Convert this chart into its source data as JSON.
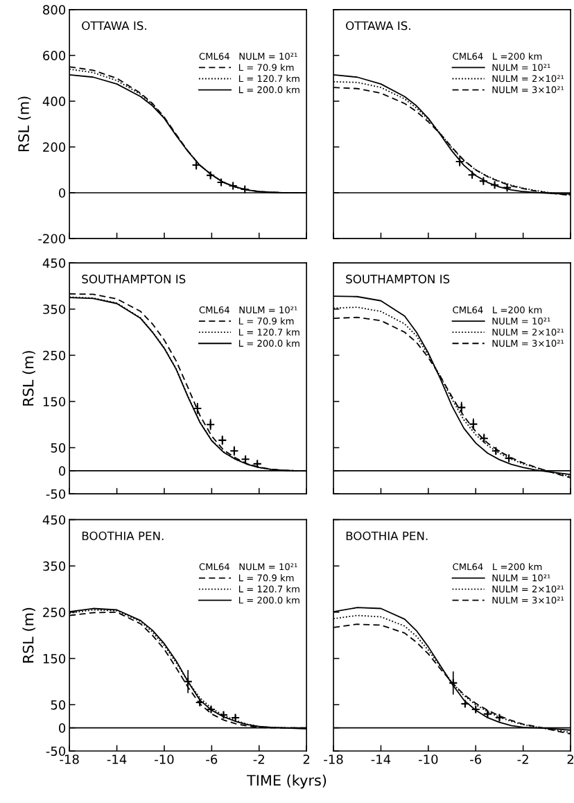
{
  "chart_data": [
    {
      "type": "line",
      "title": "OTTAWA IS.",
      "ylabel": "RSL (m)",
      "legend_title": "CML64   NULM = 10²¹",
      "legend": "upper right",
      "tick_labels": "y",
      "xlim": [
        -18,
        2
      ],
      "xticks": [
        -18,
        -14,
        -10,
        -6,
        -2,
        2
      ],
      "ylim": [
        -200,
        800
      ],
      "yticks": [
        -200,
        0,
        200,
        400,
        600,
        800
      ],
      "ref_lines": [
        {
          "axis": "y",
          "value": 0,
          "color": "#000000"
        }
      ],
      "x": [
        -18,
        -16,
        -14,
        -12,
        -11,
        -10,
        -9,
        -8,
        -7,
        -6,
        -5,
        -4,
        -3,
        -2,
        -1,
        0,
        1,
        2
      ],
      "series": [
        {
          "name": "L = 70.9 km",
          "color": "#000000",
          "line_style": "dashed",
          "values": [
            550,
            535,
            500,
            435,
            390,
            330,
            255,
            182,
            120,
            78,
            45,
            25,
            12,
            5,
            2,
            0,
            0,
            0
          ]
        },
        {
          "name": "L = 120.7 km",
          "color": "#000000",
          "line_style": "dotted",
          "values": [
            540,
            525,
            490,
            430,
            386,
            328,
            252,
            181,
            120,
            78,
            45,
            25,
            12,
            5,
            2,
            0,
            0,
            0
          ]
        },
        {
          "name": "L = 200.0 km",
          "color": "#000000",
          "line_style": "solid",
          "values": [
            515,
            505,
            475,
            420,
            380,
            325,
            250,
            180,
            120,
            78,
            45,
            25,
            12,
            5,
            2,
            0,
            0,
            0
          ]
        },
        {
          "type": "scatter",
          "marker": "cross",
          "color": "#000000",
          "x": [
            -7.3,
            -6.1,
            -5.2,
            -4.2,
            -3.2
          ],
          "values": [
            121,
            76,
            45,
            30,
            15
          ],
          "errors": [
            20,
            10,
            8,
            8,
            8
          ]
        }
      ]
    },
    {
      "type": "line",
      "title": "OTTAWA IS.",
      "legend_title": "CML64   L =200 km",
      "legend": "upper right",
      "tick_labels": false,
      "xlim": [
        -18,
        2
      ],
      "xticks": [
        -18,
        -14,
        -10,
        -6,
        -2,
        2
      ],
      "ylim": [
        -200,
        800
      ],
      "yticks": [
        -200,
        0,
        200,
        400,
        600,
        800
      ],
      "ref_lines": [
        {
          "axis": "y",
          "value": 0,
          "color": "#000000"
        }
      ],
      "x": [
        -18,
        -16,
        -14,
        -12,
        -11,
        -10,
        -9,
        -8,
        -7,
        -6,
        -5,
        -4,
        -3,
        -2,
        -1,
        0,
        1,
        2
      ],
      "series": [
        {
          "name": "NULM = 10²¹",
          "color": "#000000",
          "line_style": "solid",
          "values": [
            515,
            505,
            475,
            420,
            380,
            325,
            255,
            182,
            120,
            75,
            45,
            25,
            12,
            5,
            1,
            -2,
            -4,
            -5
          ]
        },
        {
          "name": "NULM = 2×10²¹",
          "color": "#000000",
          "line_style": "dotted",
          "values": [
            485,
            482,
            460,
            410,
            370,
            320,
            260,
            195,
            140,
            100,
            72,
            50,
            33,
            20,
            10,
            2,
            -5,
            -10
          ]
        },
        {
          "name": "NULM = 3×10²¹",
          "color": "#000000",
          "line_style": "dashed",
          "values": [
            460,
            455,
            435,
            390,
            355,
            310,
            258,
            198,
            142,
            100,
            70,
            48,
            30,
            18,
            8,
            0,
            -6,
            -12
          ]
        },
        {
          "type": "scatter",
          "marker": "cross",
          "color": "#000000",
          "x": [
            -7.35,
            -6.3,
            -5.35,
            -4.4,
            -3.35
          ],
          "values": [
            136,
            78,
            51,
            34,
            22
          ],
          "errors": [
            20,
            10,
            8,
            8,
            8
          ]
        }
      ]
    },
    {
      "type": "line",
      "title": "SOUTHAMPTON IS",
      "ylabel": "RSL (m)",
      "legend_title": "CML64   NULM = 10²¹",
      "legend": "upper right",
      "tick_labels": "y",
      "xlim": [
        -18,
        2
      ],
      "xticks": [
        -18,
        -14,
        -10,
        -6,
        -2,
        2
      ],
      "ylim": [
        -50,
        450
      ],
      "yticks": [
        -50,
        0,
        50,
        150,
        250,
        350,
        450
      ],
      "ref_lines": [
        {
          "axis": "y",
          "value": 0,
          "color": "#000000"
        }
      ],
      "x": [
        -18,
        -16,
        -14,
        -12,
        -11,
        -10,
        -9,
        -8,
        -7,
        -6,
        -5,
        -4,
        -3,
        -2,
        -1,
        0,
        1,
        2
      ],
      "series": [
        {
          "name": "L = 70.9 km",
          "color": "#000000",
          "line_style": "dashed",
          "values": [
            383,
            382,
            372,
            345,
            318,
            283,
            238,
            180,
            120,
            75,
            45,
            28,
            15,
            8,
            3,
            1,
            0,
            0
          ]
        },
        {
          "name": "L = 120.7 km",
          "color": "#000000",
          "line_style": "dotted",
          "values": [
            376,
            374,
            363,
            331,
            301,
            266,
            221,
            161,
            106,
            66,
            41,
            25,
            14,
            7,
            3,
            1,
            0,
            0
          ]
        },
        {
          "name": "L = 200.0 km",
          "color": "#000000",
          "line_style": "solid",
          "values": [
            375,
            373,
            362,
            330,
            300,
            265,
            220,
            160,
            105,
            65,
            40,
            25,
            14,
            7,
            3,
            1,
            0,
            0
          ]
        },
        {
          "type": "scatter",
          "marker": "cross",
          "color": "#000000",
          "x": [
            -7.2,
            -6.1,
            -5.1,
            -4.1,
            -3.15,
            -2.15
          ],
          "values": [
            135,
            100,
            66,
            43,
            25,
            15
          ],
          "errors": [
            12,
            12,
            10,
            10,
            6,
            5
          ]
        }
      ]
    },
    {
      "type": "line",
      "title": "SOUTHAMPTON IS",
      "legend_title": "CML64   L =200 km",
      "legend": "upper right",
      "tick_labels": false,
      "xlim": [
        -18,
        2
      ],
      "xticks": [
        -18,
        -14,
        -10,
        -6,
        -2,
        2
      ],
      "ylim": [
        -50,
        450
      ],
      "yticks": [
        -50,
        0,
        50,
        150,
        250,
        350,
        450
      ],
      "ref_lines": [
        {
          "axis": "y",
          "value": 0,
          "color": "#000000"
        }
      ],
      "x": [
        -18,
        -16,
        -14,
        -12,
        -11,
        -10,
        -9,
        -8,
        -7,
        -6,
        -5,
        -4,
        -3,
        -2,
        -1,
        0,
        1,
        2
      ],
      "series": [
        {
          "name": "NULM = 10²¹",
          "color": "#000000",
          "line_style": "solid",
          "values": [
            378,
            377,
            368,
            335,
            300,
            255,
            200,
            140,
            92,
            60,
            38,
            24,
            14,
            7,
            2,
            -2,
            -5,
            -8
          ]
        },
        {
          "name": "NULM = 2×10²¹",
          "color": "#000000",
          "line_style": "dotted",
          "values": [
            352,
            354,
            345,
            318,
            292,
            250,
            205,
            155,
            110,
            78,
            55,
            38,
            25,
            15,
            7,
            0,
            -7,
            -12
          ]
        },
        {
          "name": "NULM = 3×10²¹",
          "color": "#000000",
          "line_style": "dashed",
          "values": [
            330,
            332,
            325,
            300,
            278,
            245,
            205,
            160,
            118,
            85,
            60,
            42,
            28,
            17,
            8,
            0,
            -8,
            -15
          ]
        },
        {
          "type": "scatter",
          "marker": "cross",
          "color": "#000000",
          "x": [
            -7.2,
            -6.2,
            -5.3,
            -4.3,
            -3.2
          ],
          "values": [
            137,
            101,
            70,
            43,
            27
          ],
          "errors": [
            12,
            12,
            10,
            8,
            6
          ]
        }
      ]
    },
    {
      "type": "line",
      "title": "BOOTHIA PEN.",
      "ylabel": "RSL (m)",
      "xlabel": "TIME (kyrs)",
      "legend_title": "CML64   NULM = 10²¹",
      "legend": "upper right",
      "xlim": [
        -18,
        2
      ],
      "xticks": [
        -18,
        -14,
        -10,
        -6,
        -2,
        2
      ],
      "ylim": [
        -50,
        450
      ],
      "yticks": [
        -50,
        0,
        50,
        150,
        250,
        350,
        450
      ],
      "ref_lines": [
        {
          "axis": "y",
          "value": 0,
          "color": "#000000"
        }
      ],
      "x": [
        -18,
        -16,
        -14,
        -12,
        -11,
        -10,
        -9,
        -8,
        -7,
        -6,
        -5,
        -4,
        -3,
        -2,
        -1,
        0,
        1,
        2
      ],
      "series": [
        {
          "name": "L = 70.9 km",
          "color": "#000000",
          "line_style": "dashed",
          "values": [
            243,
            249,
            250,
            225,
            200,
            170,
            130,
            88,
            52,
            30,
            17,
            9,
            4,
            1,
            0,
            0,
            0,
            0
          ]
        },
        {
          "name": "L = 120.7 km",
          "color": "#000000",
          "line_style": "dotted",
          "values": [
            248,
            255,
            253,
            230,
            207,
            178,
            141,
            100,
            65,
            42,
            27,
            16,
            8,
            3,
            1,
            0,
            0,
            -1
          ]
        },
        {
          "name": "L = 200.0 km",
          "color": "#000000",
          "line_style": "solid",
          "values": [
            251,
            258,
            255,
            232,
            211,
            182,
            145,
            100,
            60,
            38,
            24,
            14,
            7,
            3,
            1,
            0,
            -1,
            -2
          ]
        },
        {
          "type": "scatter",
          "marker": "cross",
          "color": "#000000",
          "x": [
            -8.0,
            -7.0,
            -6.05,
            -5.0,
            -4.0
          ],
          "values": [
            100,
            55,
            40,
            28,
            22
          ],
          "errors": [
            25,
            6,
            6,
            6,
            6
          ]
        }
      ]
    },
    {
      "type": "line",
      "title": "BOOTHIA PEN.",
      "legend_title": "CML64   L =200 km",
      "legend": "upper right",
      "tick_labels": "x",
      "xlim": [
        -18,
        2
      ],
      "xticks": [
        -18,
        -14,
        -10,
        -6,
        -2,
        2
      ],
      "ylim": [
        -50,
        450
      ],
      "yticks": [
        -50,
        0,
        50,
        150,
        250,
        350,
        450
      ],
      "ref_lines": [
        {
          "axis": "y",
          "value": 0,
          "color": "#000000"
        }
      ],
      "x": [
        -18,
        -16,
        -14,
        -12,
        -11,
        -10,
        -9,
        -8,
        -7,
        -6,
        -5,
        -4,
        -3,
        -2,
        -1,
        0,
        1,
        2
      ],
      "series": [
        {
          "name": "NULM = 10²¹",
          "color": "#000000",
          "line_style": "solid",
          "values": [
            251,
            260,
            258,
            235,
            210,
            175,
            135,
            95,
            60,
            38,
            22,
            12,
            5,
            1,
            0,
            -1,
            -3,
            -5
          ]
        },
        {
          "name": "NULM = 2×10²¹",
          "color": "#000000",
          "line_style": "dotted",
          "values": [
            236,
            243,
            240,
            220,
            198,
            168,
            133,
            98,
            70,
            50,
            35,
            23,
            14,
            7,
            2,
            -2,
            -6,
            -10
          ]
        },
        {
          "name": "NULM = 3×10²¹",
          "color": "#000000",
          "line_style": "dashed",
          "values": [
            217,
            224,
            222,
            205,
            185,
            160,
            128,
            98,
            72,
            53,
            38,
            26,
            16,
            8,
            3,
            -2,
            -8,
            -13
          ]
        },
        {
          "type": "scatter",
          "marker": "cross",
          "color": "#000000",
          "x": [
            -7.9,
            -6.9,
            -6.0,
            -5.0,
            -4.0
          ],
          "values": [
            97,
            52,
            40,
            30,
            22
          ],
          "errors": [
            25,
            6,
            6,
            6,
            6
          ]
        }
      ]
    }
  ]
}
